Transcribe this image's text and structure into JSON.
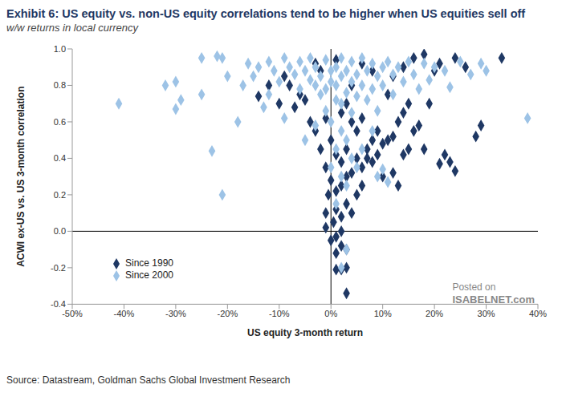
{
  "chart_data": {
    "type": "scatter",
    "title": "Exhibit 6: US equity vs. non-US equity correlations tend to be higher when US equities sell off",
    "subtitle": "w/w returns in local currency",
    "x_label": "US equity 3-month return",
    "y_label": "ACWI ex-US vs. US 3-month correlation",
    "source": "Source: Datastream, Goldman Sachs Global Investment Research",
    "annotations": [
      "Posted on",
      "ISABELNET.com"
    ],
    "legend": "bottom-left",
    "grid": false,
    "xlim": [
      -50,
      40
    ],
    "xticks": [
      {
        "value": -50,
        "label": "-50%"
      },
      {
        "value": -40,
        "label": "-40%"
      },
      {
        "value": -30,
        "label": "-30%"
      },
      {
        "value": -20,
        "label": "-20%"
      },
      {
        "value": -10,
        "label": "-10%"
      },
      {
        "value": 0,
        "label": "0%"
      },
      {
        "value": 10,
        "label": "10%"
      },
      {
        "value": 20,
        "label": "20%"
      },
      {
        "value": 30,
        "label": "30%"
      },
      {
        "value": 40,
        "label": "40%"
      }
    ],
    "ylim": [
      -0.4,
      1.0
    ],
    "yticks": [
      -0.4,
      -0.2,
      {
        "value": 0,
        "label": "0.0"
      },
      0.2,
      0.4,
      0.6,
      0.8,
      {
        "value": 1.0,
        "label": "1.0"
      }
    ],
    "series": [
      {
        "name": "Since 1990",
        "color": "#1f3864",
        "marker": "diamond",
        "x": [
          3,
          1,
          2,
          3,
          1,
          2,
          0,
          1,
          3,
          2,
          -1,
          0.5,
          2,
          -1,
          1,
          3,
          -0.5,
          1,
          2,
          0,
          3,
          4,
          -1,
          2,
          5,
          1,
          3,
          6,
          7,
          8,
          9,
          10,
          11,
          12,
          5,
          4,
          6,
          7,
          8,
          9,
          0,
          -2,
          -3,
          -4,
          -1,
          2,
          3,
          -5,
          -6,
          -8,
          -9,
          -12,
          -14,
          -10,
          -7,
          13,
          14,
          15,
          16,
          17,
          15,
          22,
          23,
          24,
          21,
          18,
          28,
          29,
          12,
          13,
          14,
          10,
          6,
          5,
          4,
          11,
          12,
          14,
          16,
          18,
          20,
          21,
          24,
          26,
          33,
          8,
          6,
          -2,
          -3,
          1,
          4,
          19
        ],
        "values": [
          -0.34,
          -0.21,
          -0.21,
          -0.2,
          -0.12,
          -0.08,
          -0.05,
          -0.03,
          -0.1,
          0,
          0.02,
          0.05,
          0.08,
          0.1,
          0.12,
          0.15,
          0.2,
          0.22,
          0.25,
          0.28,
          0.3,
          0.32,
          0.35,
          0.38,
          0.4,
          0.42,
          0.45,
          0.35,
          0.45,
          0.5,
          0.55,
          0.48,
          0.5,
          0.52,
          0.55,
          0.6,
          0.62,
          0.4,
          0.38,
          0.42,
          0.5,
          0.45,
          0.55,
          0.6,
          0.62,
          0.65,
          0.7,
          0.72,
          0.75,
          0.8,
          0.85,
          0.8,
          0.74,
          0.7,
          0.68,
          0.6,
          0.65,
          0.7,
          0.55,
          0.58,
          0.45,
          0.42,
          0.38,
          0.33,
          0.37,
          0.45,
          0.52,
          0.58,
          0.32,
          0.25,
          0.42,
          0.3,
          0.25,
          0.2,
          0.1,
          0.75,
          0.85,
          0.9,
          0.95,
          0.97,
          0.88,
          0.92,
          0.95,
          0.9,
          0.95,
          0.88,
          0.92,
          0.88,
          0.92,
          0.94,
          0.8,
          0.7
        ]
      },
      {
        "name": "Since 2000",
        "color": "#9dc3e6",
        "marker": "diamond",
        "x": [
          -41,
          -32,
          -30,
          -30,
          -29,
          -25,
          -25,
          -22,
          -21,
          -23,
          -21,
          -20,
          -18,
          -17,
          -16,
          -15,
          -14,
          -13,
          -12,
          -12,
          -11,
          -10,
          -9,
          -9,
          -8,
          -7,
          -6,
          -6,
          -5,
          -4,
          -4,
          -3,
          -3,
          -2,
          -2,
          -1,
          -1,
          0,
          0,
          1,
          1,
          1,
          2,
          2,
          2,
          3,
          3,
          4,
          4,
          4,
          5,
          5,
          6,
          6,
          7,
          7,
          8,
          8,
          9,
          9,
          10,
          10,
          11,
          12,
          12,
          13,
          14,
          15,
          16,
          17,
          18,
          19,
          20,
          22,
          23,
          25,
          27,
          29,
          30,
          38,
          2,
          3,
          1,
          4,
          2,
          3,
          0,
          5,
          6,
          8,
          9,
          10,
          11,
          2,
          3,
          1,
          -3,
          -5,
          0,
          -1
        ],
        "values": [
          0.7,
          0.8,
          0.82,
          0.67,
          0.72,
          0.75,
          0.95,
          0.96,
          0.95,
          0.44,
          0.2,
          0.85,
          0.6,
          0.8,
          0.92,
          0.85,
          0.9,
          0.68,
          0.75,
          0.93,
          0.88,
          0.82,
          0.62,
          0.95,
          0.9,
          0.86,
          0.78,
          0.93,
          0.88,
          0.83,
          0.95,
          0.8,
          0.9,
          0.75,
          0.85,
          0.94,
          0.78,
          0.88,
          0.82,
          0.9,
          0.72,
          0.8,
          0.85,
          0.95,
          0.7,
          0.88,
          0.76,
          0.93,
          0.82,
          0.65,
          0.86,
          0.74,
          0.95,
          0.8,
          0.88,
          0.72,
          0.92,
          0.78,
          0.85,
          0.66,
          0.9,
          0.8,
          0.93,
          0.86,
          0.75,
          0.9,
          0.82,
          0.93,
          0.86,
          0.78,
          0.92,
          0.83,
          0.9,
          0.88,
          0.79,
          0.93,
          0.86,
          0.92,
          0.88,
          0.62,
          0.55,
          0.5,
          0.45,
          0.4,
          0.3,
          0.25,
          0.35,
          0.35,
          0.45,
          0.55,
          0.3,
          0.34,
          0.27,
          -0.2,
          -0.1,
          0.15,
          0.58,
          0.5,
          0.6,
          0.66
        ]
      }
    ]
  }
}
